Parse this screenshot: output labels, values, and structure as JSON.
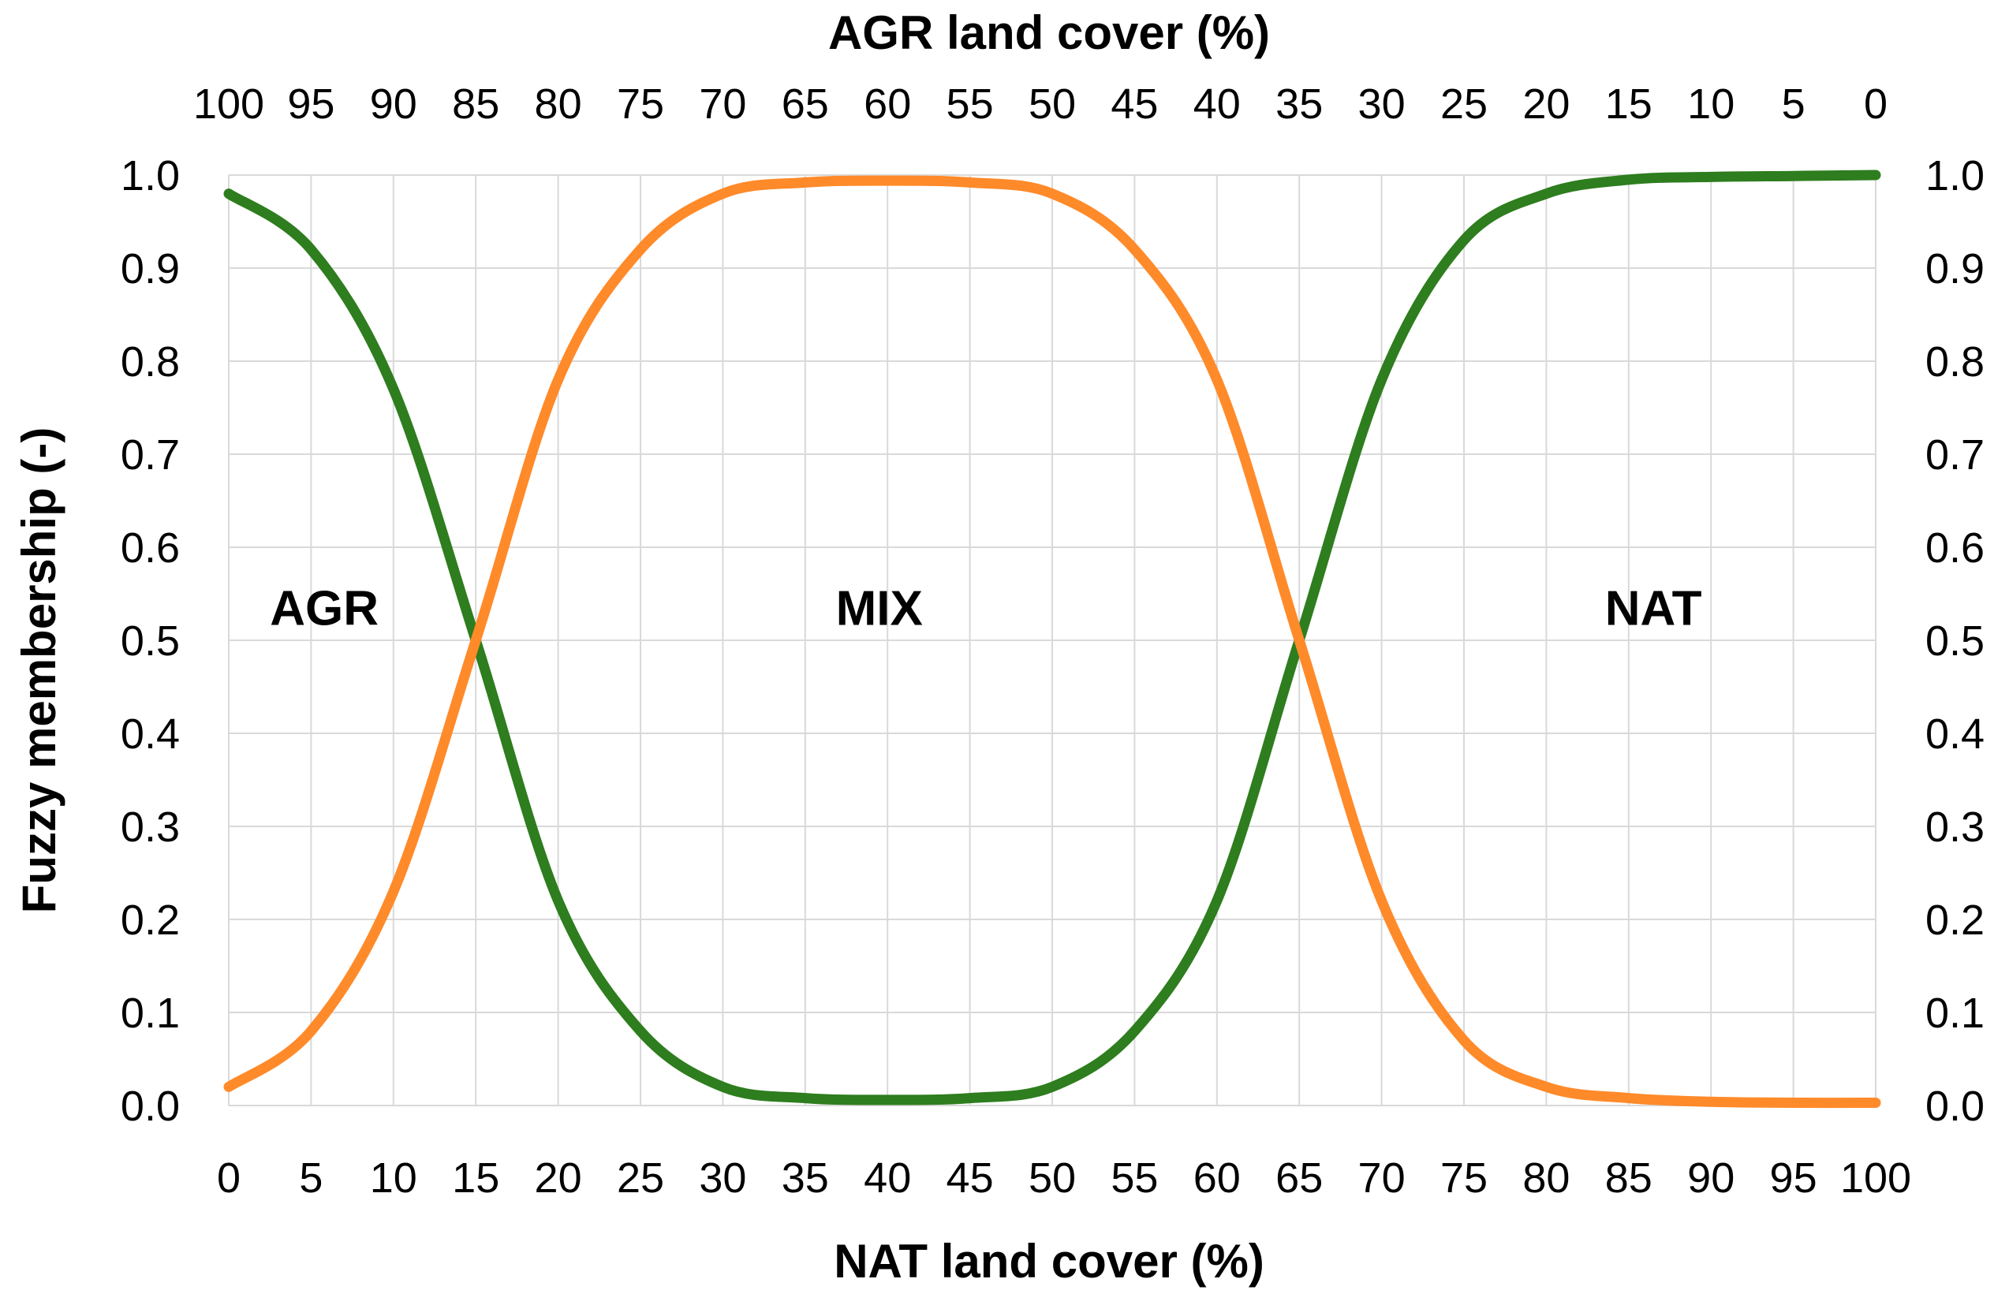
{
  "chart_data": {
    "type": "line",
    "xlabel": "NAT land cover (%)",
    "x2label": "AGR land cover (%)",
    "ylabel": "Fuzzy membership (-)",
    "xlim": [
      0,
      100
    ],
    "ylim": [
      0,
      1
    ],
    "x_ticks": [
      "0",
      "5",
      "10",
      "15",
      "20",
      "25",
      "30",
      "35",
      "40",
      "45",
      "50",
      "55",
      "60",
      "65",
      "70",
      "75",
      "80",
      "85",
      "90",
      "95",
      "100"
    ],
    "x2_ticks": [
      "100",
      "95",
      "90",
      "85",
      "80",
      "75",
      "70",
      "65",
      "60",
      "55",
      "50",
      "45",
      "40",
      "35",
      "30",
      "25",
      "20",
      "15",
      "10",
      "5",
      "0"
    ],
    "y_ticks": [
      "0.0",
      "0.1",
      "0.2",
      "0.3",
      "0.4",
      "0.5",
      "0.6",
      "0.7",
      "0.8",
      "0.9",
      "1.0"
    ],
    "grid": true,
    "series": [
      {
        "color": "#2e7d1e",
        "x": [
          0,
          5,
          10,
          15,
          20,
          25,
          30,
          35,
          40,
          45,
          50,
          55,
          60,
          65,
          70,
          75,
          80,
          85,
          90,
          95,
          100
        ],
        "y": [
          0.98,
          0.92,
          0.77,
          0.5,
          0.22,
          0.08,
          0.02,
          0.008,
          0.006,
          0.008,
          0.02,
          0.08,
          0.22,
          0.5,
          0.78,
          0.93,
          0.98,
          0.995,
          0.998,
          0.999,
          1.0
        ]
      },
      {
        "color": "#ff8a2a",
        "x": [
          0,
          5,
          10,
          15,
          20,
          25,
          30,
          35,
          40,
          45,
          50,
          55,
          60,
          65,
          70,
          75,
          80,
          85,
          90,
          95,
          100
        ],
        "y": [
          0.02,
          0.08,
          0.23,
          0.5,
          0.78,
          0.92,
          0.98,
          0.992,
          0.994,
          0.992,
          0.98,
          0.92,
          0.78,
          0.5,
          0.22,
          0.07,
          0.02,
          0.008,
          0.004,
          0.003,
          0.003
        ]
      }
    ],
    "annotations": [
      {
        "text": "AGR",
        "x": 5.8,
        "y": 0.535
      },
      {
        "text": "MIX",
        "x": 39.5,
        "y": 0.535
      },
      {
        "text": "NAT",
        "x": 86.5,
        "y": 0.535
      }
    ]
  }
}
